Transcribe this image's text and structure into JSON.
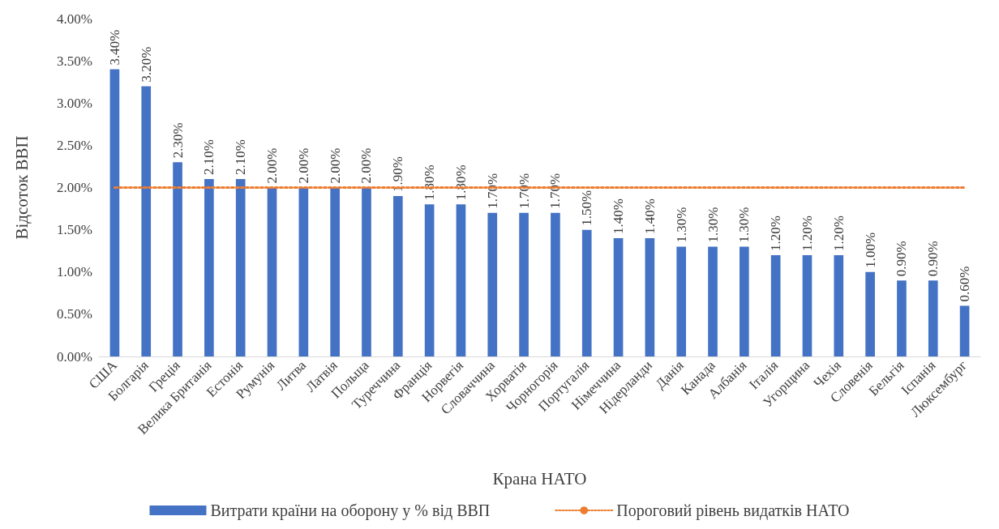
{
  "chart_data": {
    "type": "bar",
    "ylabel": "Відсоток ВВП",
    "xlabel": "Крана НАТО",
    "categories": [
      "США",
      "Болгарія",
      "Греція",
      "Велика Британія",
      "Естонія",
      "Румунія",
      "Литва",
      "Латвія",
      "Польща",
      "Туреччина",
      "Франція",
      "Норвегія",
      "Словаччина",
      "Хорватія",
      "Чорногорія",
      "Португалія",
      "Німеччина",
      "Нідерланди",
      "Данія",
      "Канада",
      "Албанія",
      "Італія",
      "Угорщина",
      "Чехія",
      "Словенія",
      "Бельгія",
      "Іспанія",
      "Люксембург"
    ],
    "ylim": [
      0,
      4
    ],
    "yticks": [
      {
        "value": 0,
        "label": "0.00%"
      },
      {
        "value": 0.5,
        "label": "0.50%"
      },
      {
        "value": 1,
        "label": "1.00%"
      },
      {
        "value": 1.5,
        "label": "1.50%"
      },
      {
        "value": 2,
        "label": "2.00%"
      },
      {
        "value": 2.5,
        "label": "2.50%"
      },
      {
        "value": 3,
        "label": "3.00%"
      },
      {
        "value": 3.5,
        "label": "3.50%"
      },
      {
        "value": 4,
        "label": "4.00%"
      }
    ],
    "grid": false,
    "legend": "bottom",
    "series": [
      {
        "name": "Витрати країни на оборону у % від ВВП",
        "color": "#4472c4",
        "values": [
          3.4,
          3.2,
          2.3,
          2.1,
          2.1,
          2.0,
          2.0,
          2.0,
          2.0,
          1.9,
          1.8,
          1.8,
          1.7,
          1.7,
          1.7,
          1.5,
          1.4,
          1.4,
          1.3,
          1.3,
          1.3,
          1.2,
          1.2,
          1.2,
          1.0,
          0.9,
          0.9,
          0.6
        ],
        "value_labels": [
          "3.40%",
          "3.20%",
          "2.30%",
          "2.10%",
          "2.10%",
          "2.00%",
          "2.00%",
          "2.00%",
          "2.00%",
          "1.90%",
          "1.80%",
          "1.80%",
          "1.70%",
          "1.70%",
          "1.70%",
          "1.50%",
          "1.40%",
          "1.40%",
          "1.30%",
          "1.30%",
          "1.30%",
          "1.20%",
          "1.20%",
          "1.20%",
          "1.00%",
          "0.90%",
          "0.90%",
          "0.60%"
        ]
      },
      {
        "name": "Пороговий рівень видатків НАТО",
        "type": "line",
        "color": "#ed7d31",
        "marker": "none",
        "line_style": "dotted",
        "values": [
          2,
          2,
          2,
          2,
          2,
          2,
          2,
          2,
          2,
          2,
          2,
          2,
          2,
          2,
          2,
          2,
          2,
          2,
          2,
          2,
          2,
          2,
          2,
          2,
          2,
          2,
          2,
          2
        ]
      }
    ]
  }
}
